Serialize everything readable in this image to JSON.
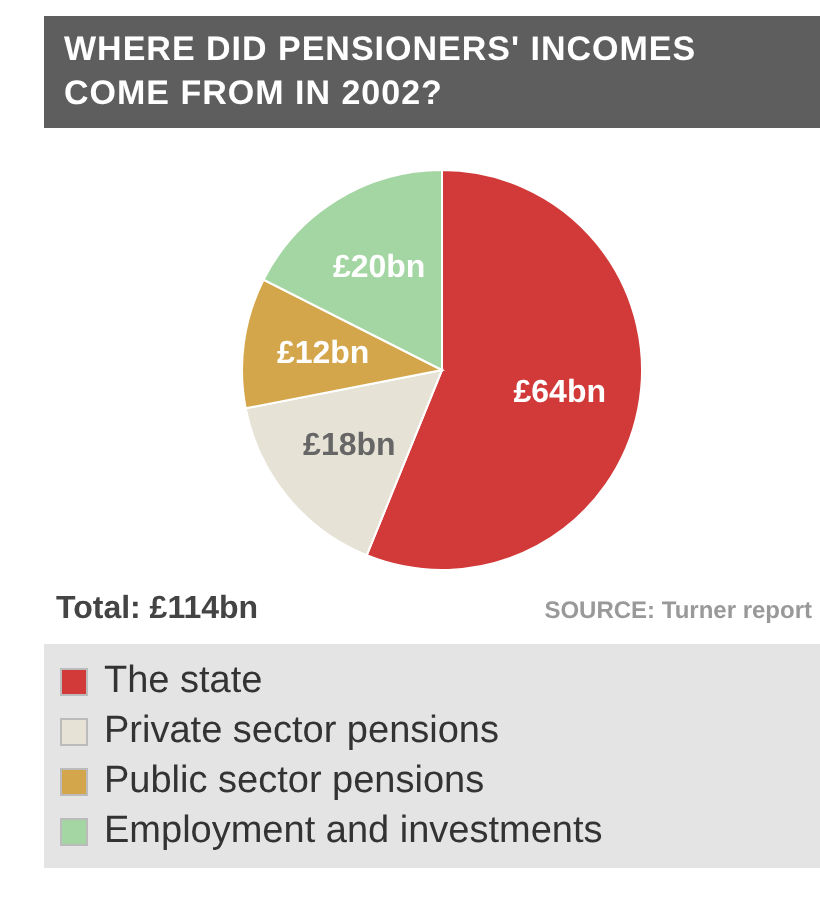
{
  "chart_data": {
    "type": "pie",
    "title": "WHERE DID PENSIONERS' INCOMES COME FROM IN 2002?",
    "categories": [
      "The state",
      "Private sector pensions",
      "Public sector pensions",
      "Employment and investments"
    ],
    "values": [
      64,
      18,
      12,
      20
    ],
    "colors": [
      "#d23a3a",
      "#e6e3d6",
      "#d4a64c",
      "#a3d6a3"
    ],
    "value_labels": [
      "£64bn",
      "£18bn",
      "£12bn",
      "£20bn"
    ],
    "annotations": [
      "Total: £114bn",
      "SOURCE: Turner report"
    ],
    "legend": "bottom"
  }
}
